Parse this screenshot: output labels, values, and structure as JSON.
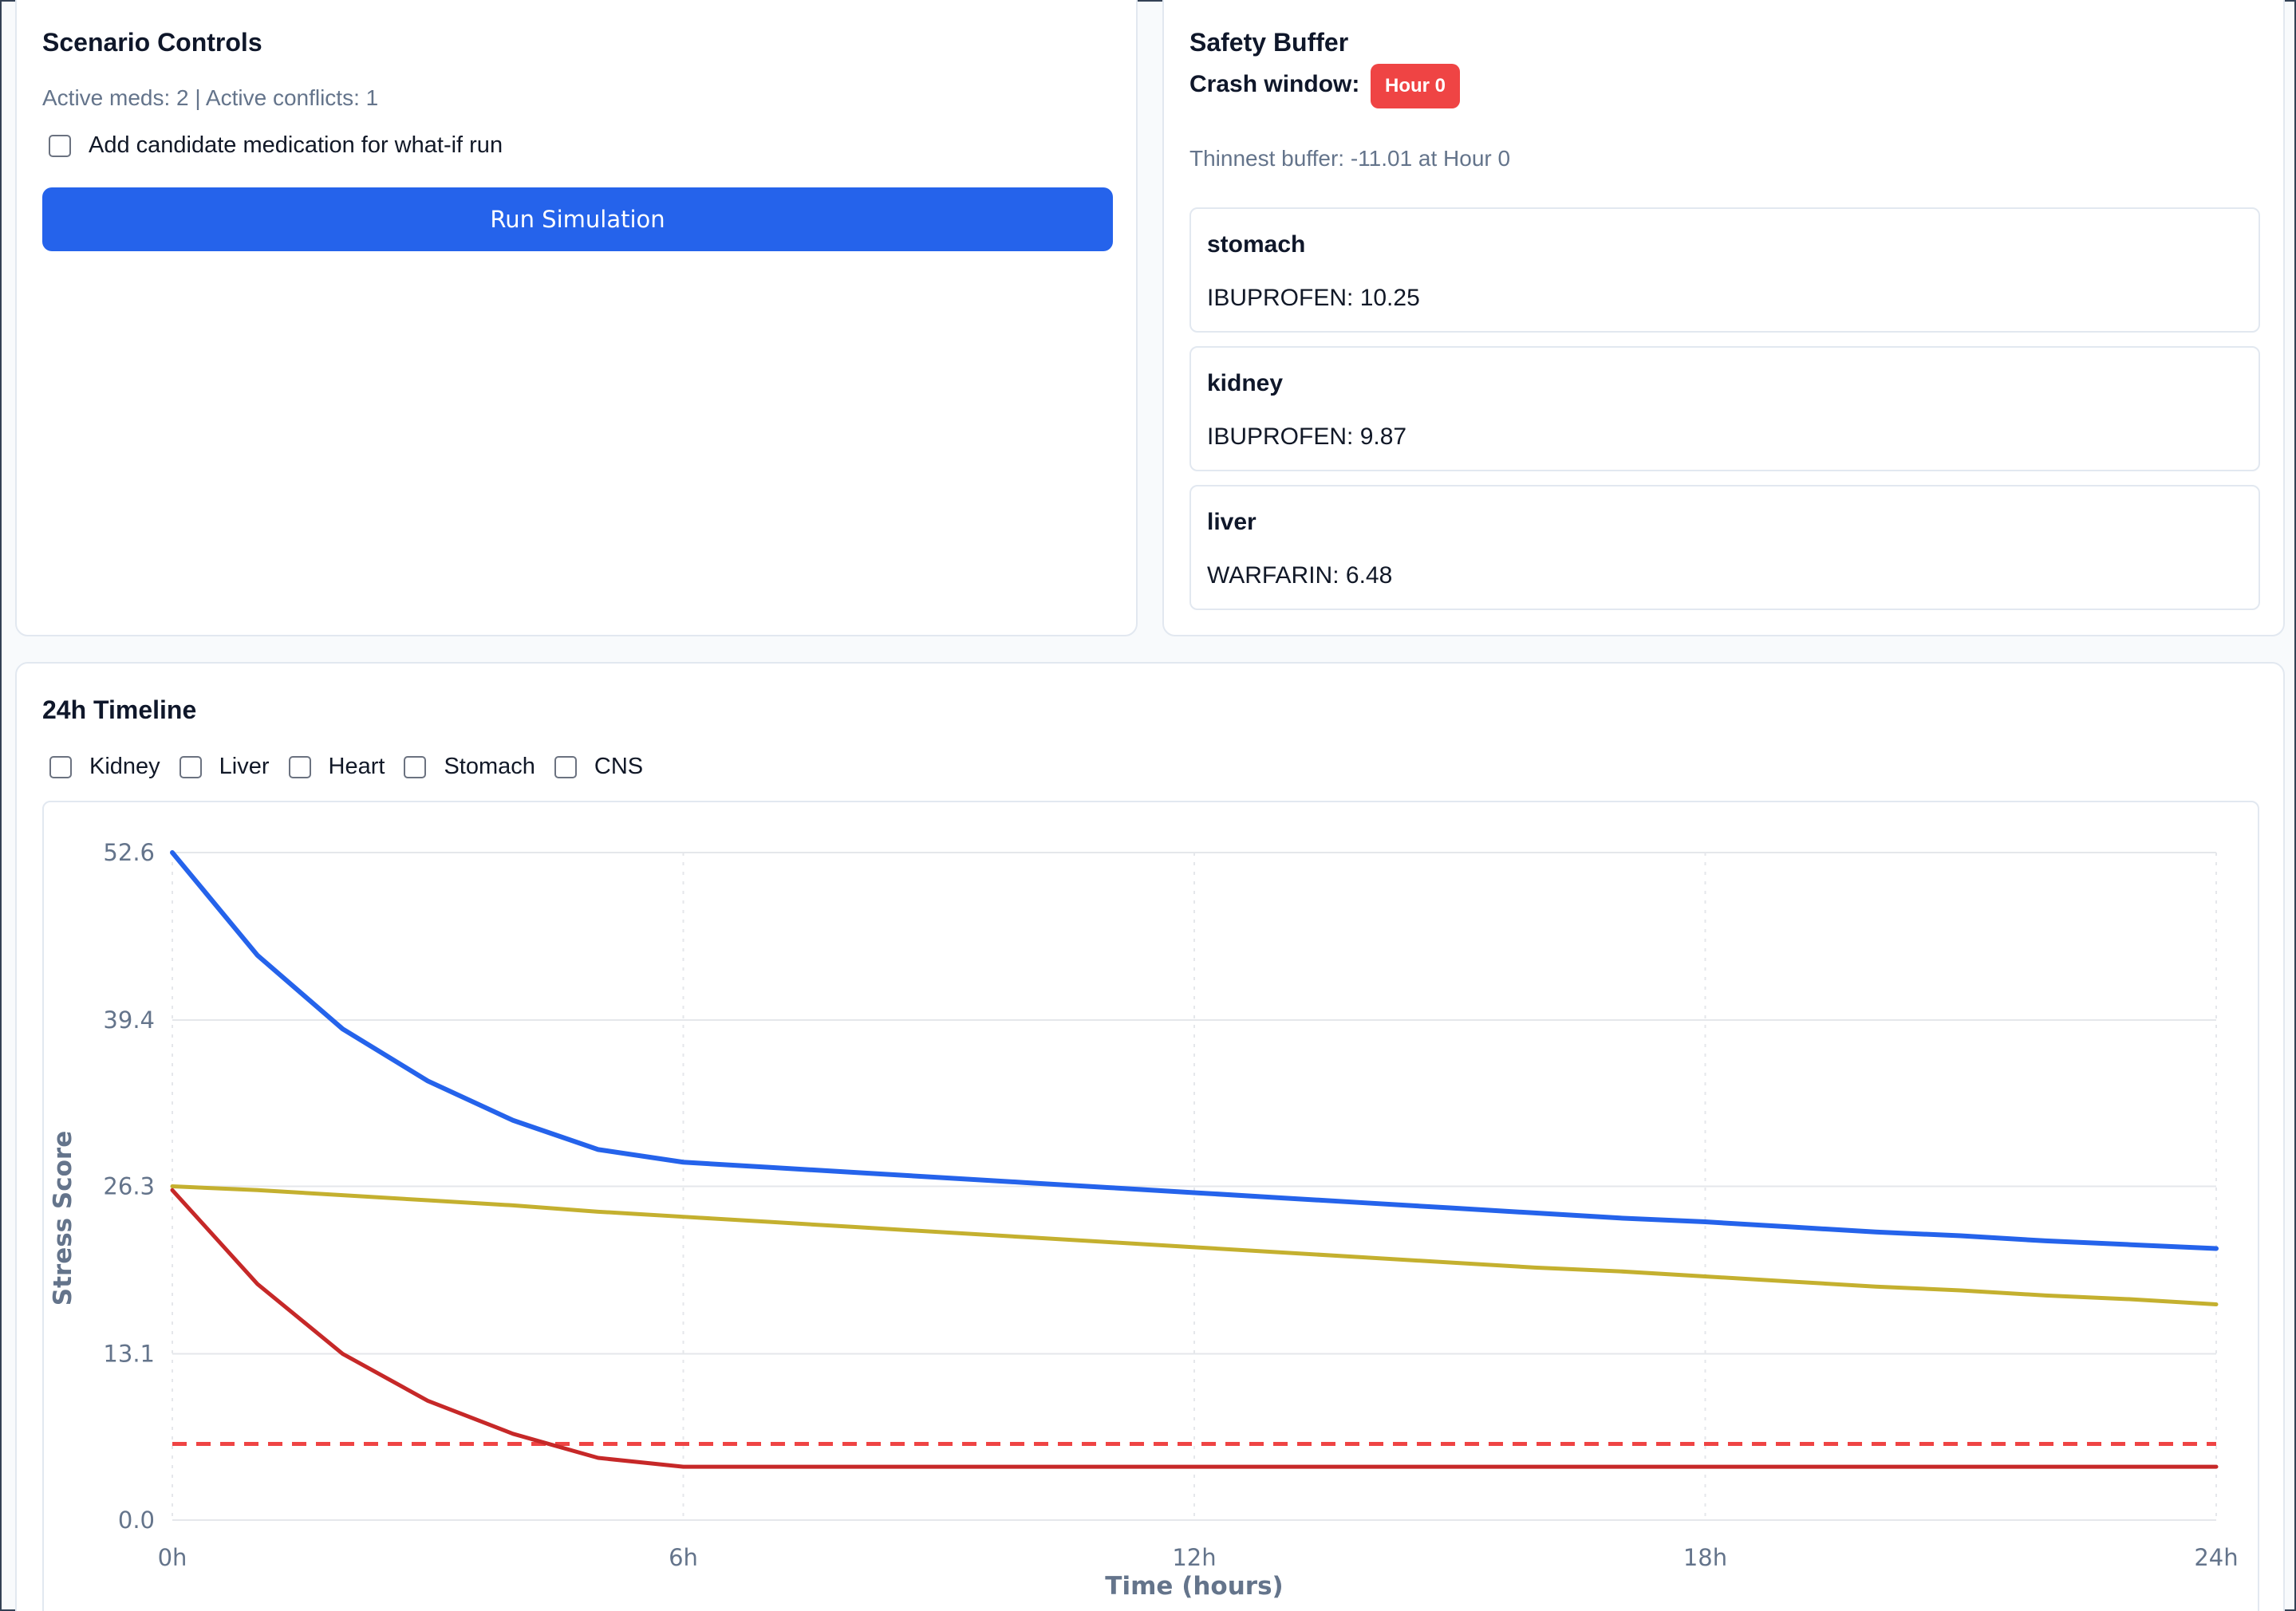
{
  "scenario": {
    "title": "Scenario Controls",
    "summary": "Active meds: 2 | Active conflicts: 1",
    "candidate_label": "Add candidate medication for what-if run",
    "candidate_checked": false,
    "run_label": "Run Simulation",
    "run_color": "#2563eb"
  },
  "safety": {
    "title": "Safety Buffer",
    "crash_label": "Crash window:",
    "crash_badge": "Hour 0",
    "crash_color": "#ef4444",
    "thinnest": "Thinnest buffer: -11.01 at Hour 0",
    "organs": [
      {
        "name": "stomach",
        "value": "IBUPROFEN: 10.25"
      },
      {
        "name": "kidney",
        "value": "IBUPROFEN: 9.87"
      },
      {
        "name": "liver",
        "value": "WARFARIN: 6.48"
      }
    ]
  },
  "timeline": {
    "title": "24h Timeline",
    "toggles": [
      {
        "label": "Kidney",
        "checked": false
      },
      {
        "label": "Liver",
        "checked": false
      },
      {
        "label": "Heart",
        "checked": false
      },
      {
        "label": "Stomach",
        "checked": false
      },
      {
        "label": "CNS",
        "checked": false
      }
    ]
  },
  "chart_data": {
    "type": "line",
    "xlabel": "Time (hours)",
    "ylabel": "Stress Score",
    "xlim": [
      0,
      24
    ],
    "ylim": [
      0,
      52.6
    ],
    "x_ticks": [
      0,
      6,
      12,
      18,
      24
    ],
    "x_tick_labels": [
      "0h",
      "6h",
      "12h",
      "18h",
      "24h"
    ],
    "y_ticks": [
      0.0,
      13.1,
      26.3,
      39.4,
      52.6
    ],
    "y_tick_labels": [
      "0.0",
      "13.1",
      "26.3",
      "39.4",
      "52.6"
    ],
    "grid": true,
    "x": [
      0,
      1,
      2,
      3,
      4,
      5,
      6,
      7,
      8,
      9,
      10,
      11,
      12,
      13,
      14,
      15,
      16,
      17,
      18,
      19,
      20,
      21,
      22,
      23,
      24
    ],
    "series": [
      {
        "color": "#2563eb",
        "values": [
          52.6,
          44.5,
          38.7,
          34.6,
          31.5,
          29.2,
          28.2,
          27.8,
          27.4,
          27.0,
          26.6,
          26.2,
          25.8,
          25.4,
          25.0,
          24.6,
          24.2,
          23.8,
          23.5,
          23.1,
          22.7,
          22.4,
          22.0,
          21.7,
          21.4
        ]
      },
      {
        "color": "#c4b02f",
        "values": [
          26.3,
          26.0,
          25.6,
          25.2,
          24.8,
          24.3,
          23.9,
          23.5,
          23.1,
          22.7,
          22.3,
          21.9,
          21.5,
          21.1,
          20.7,
          20.3,
          19.9,
          19.6,
          19.2,
          18.8,
          18.4,
          18.1,
          17.7,
          17.4,
          17.0
        ]
      },
      {
        "color": "#c62828",
        "values": [
          26.0,
          18.6,
          13.1,
          9.4,
          6.8,
          4.9,
          4.2,
          4.2,
          4.2,
          4.2,
          4.2,
          4.2,
          4.2,
          4.2,
          4.2,
          4.2,
          4.2,
          4.2,
          4.2,
          4.2,
          4.2,
          4.2,
          4.2,
          4.2,
          4.2
        ]
      }
    ],
    "threshold": {
      "value": 6.0,
      "color": "#ef4444",
      "style": "dashed"
    }
  }
}
